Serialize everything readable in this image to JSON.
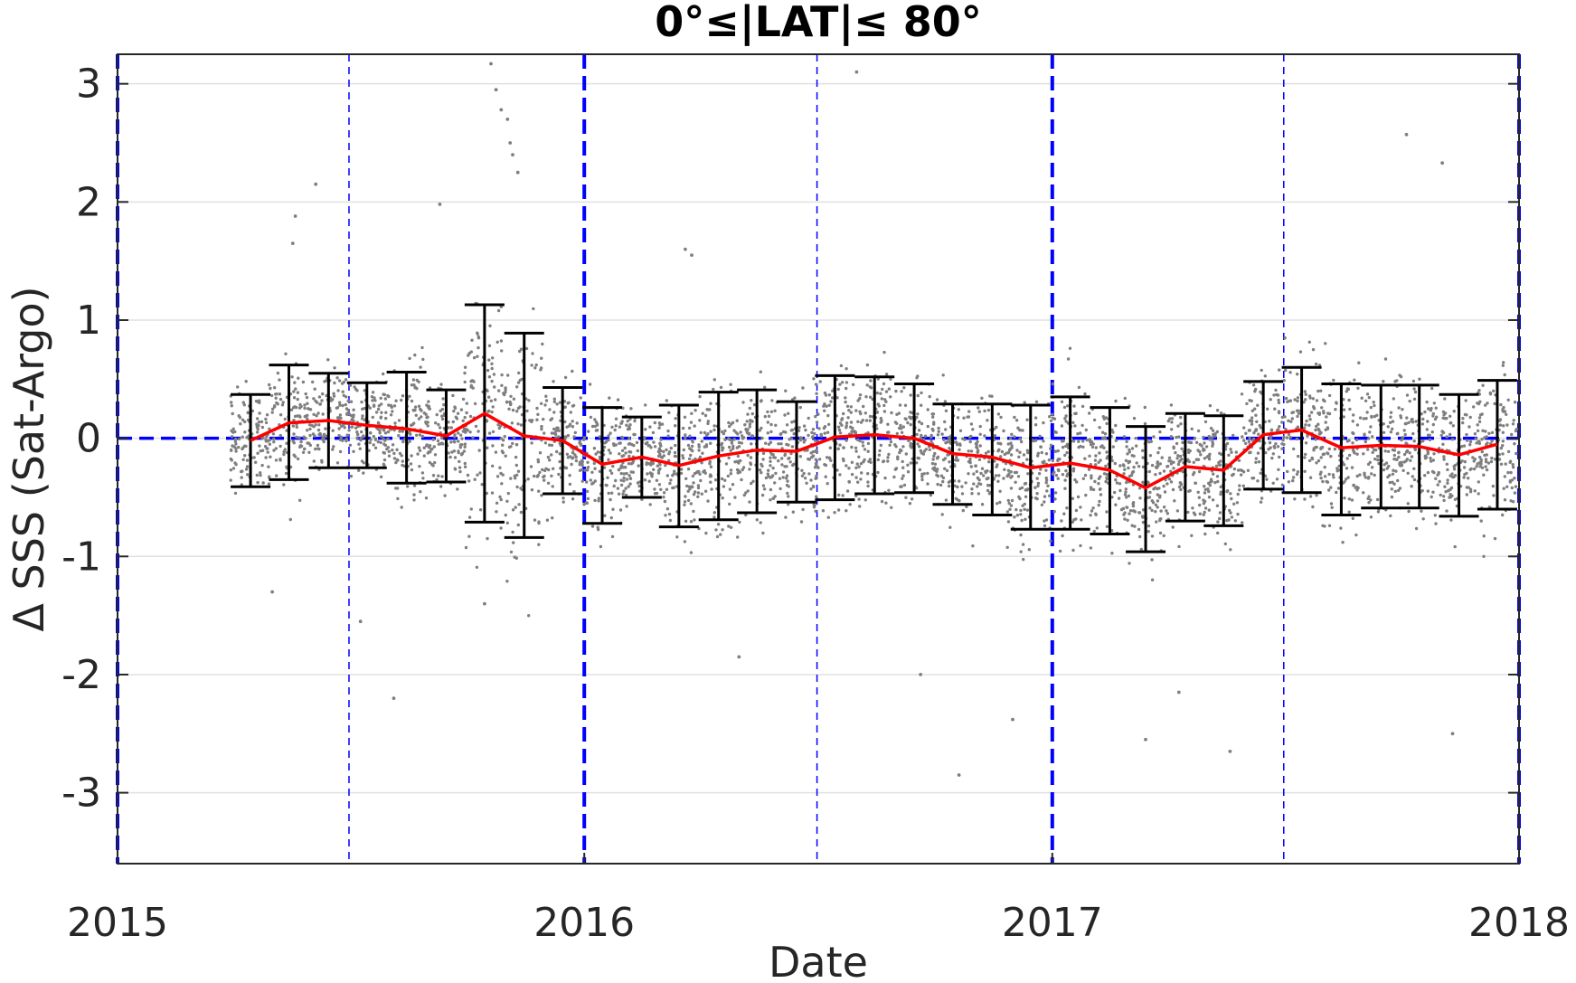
{
  "chart_data": {
    "type": "scatter",
    "title": "0°≤|LAT|≤ 80°",
    "xlabel": "Date",
    "ylabel": "Δ SSS (Sat-Argo)",
    "xlim": [
      "2015-01-01",
      "2018-01-01"
    ],
    "ylim": [
      -3.6,
      3.25
    ],
    "x_ticks": [
      "2015",
      "2016",
      "2017",
      "2018"
    ],
    "y_ticks": [
      3,
      2,
      1,
      0,
      -1,
      -2,
      -3
    ],
    "grid": true,
    "colors": {
      "points": "#7f7f7f",
      "mean_line": "#ff0000",
      "error_bars": "#000000",
      "reference_lines": "#0000ff",
      "grid": "#e0e0e0"
    },
    "reference_lines": {
      "horizontal_y": 0,
      "year_boundaries": [
        "2015-01-01",
        "2016-01-01",
        "2017-01-01",
        "2018-01-01"
      ],
      "mid_year": [
        "2015-07-01",
        "2016-07-01",
        "2017-07-01"
      ]
    },
    "series": [
      {
        "kind": "monthly-mean-with-error-bars",
        "x": [
          "2015-04-15",
          "2015-05-15",
          "2015-06-15",
          "2015-07-15",
          "2015-08-15",
          "2015-09-15",
          "2015-10-15",
          "2015-11-15",
          "2015-12-15",
          "2016-01-15",
          "2016-02-15",
          "2016-03-15",
          "2016-04-15",
          "2016-05-15",
          "2016-06-15",
          "2016-07-15",
          "2016-08-15",
          "2016-09-15",
          "2016-10-15",
          "2016-11-15",
          "2016-12-15",
          "2017-01-15",
          "2017-02-15",
          "2017-03-15",
          "2017-04-15",
          "2017-05-15",
          "2017-06-15",
          "2017-07-15",
          "2017-08-15",
          "2017-09-15",
          "2017-10-15",
          "2017-11-15",
          "2017-12-15"
        ],
        "mean": [
          -0.02,
          0.13,
          0.15,
          0.11,
          0.08,
          0.02,
          0.21,
          0.02,
          -0.02,
          -0.22,
          -0.16,
          -0.23,
          -0.15,
          -0.1,
          -0.11,
          0.01,
          0.03,
          0.0,
          -0.13,
          -0.16,
          -0.25,
          -0.21,
          -0.27,
          -0.42,
          -0.24,
          -0.27,
          0.03,
          0.07,
          -0.08,
          -0.06,
          -0.07,
          -0.14,
          -0.05
        ],
        "upper": [
          0.37,
          0.62,
          0.55,
          0.47,
          0.56,
          0.41,
          1.13,
          0.89,
          0.43,
          0.26,
          0.18,
          0.28,
          0.39,
          0.41,
          0.31,
          0.53,
          0.52,
          0.46,
          0.29,
          0.29,
          0.28,
          0.35,
          0.26,
          0.1,
          0.21,
          0.19,
          0.48,
          0.6,
          0.46,
          0.45,
          0.45,
          0.37,
          0.49
        ],
        "lower": [
          -0.41,
          -0.35,
          -0.25,
          -0.25,
          -0.38,
          -0.37,
          -0.71,
          -0.84,
          -0.47,
          -0.72,
          -0.5,
          -0.75,
          -0.69,
          -0.63,
          -0.54,
          -0.52,
          -0.47,
          -0.46,
          -0.56,
          -0.65,
          -0.77,
          -0.77,
          -0.81,
          -0.96,
          -0.7,
          -0.74,
          -0.43,
          -0.46,
          -0.65,
          -0.59,
          -0.59,
          -0.66,
          -0.6
        ]
      },
      {
        "kind": "outlier-points",
        "x": [
          "2015-10-20",
          "2015-10-24",
          "2015-10-28",
          "2015-11-02",
          "2015-11-04",
          "2015-11-06",
          "2015-11-10",
          "2015-06-05",
          "2015-09-10",
          "2015-05-20",
          "2015-05-18",
          "2016-03-20",
          "2016-03-25",
          "2016-08-01",
          "2017-10-05",
          "2017-11-02",
          "2015-08-05",
          "2015-07-10",
          "2016-09-20",
          "2017-05-20",
          "2017-03-15",
          "2016-10-20",
          "2015-05-02",
          "2016-12-01",
          "2017-04-10",
          "2017-11-10",
          "2016-05-01",
          "2015-10-15"
        ],
        "y": [
          3.17,
          2.95,
          2.78,
          2.7,
          2.5,
          2.4,
          2.25,
          2.15,
          1.98,
          1.88,
          1.65,
          1.6,
          1.55,
          3.1,
          2.57,
          2.33,
          -2.2,
          -1.55,
          -2.0,
          -2.65,
          -2.55,
          -2.85,
          -1.3,
          -2.38,
          -2.15,
          -2.5,
          -1.85,
          -1.4
        ]
      }
    ]
  }
}
